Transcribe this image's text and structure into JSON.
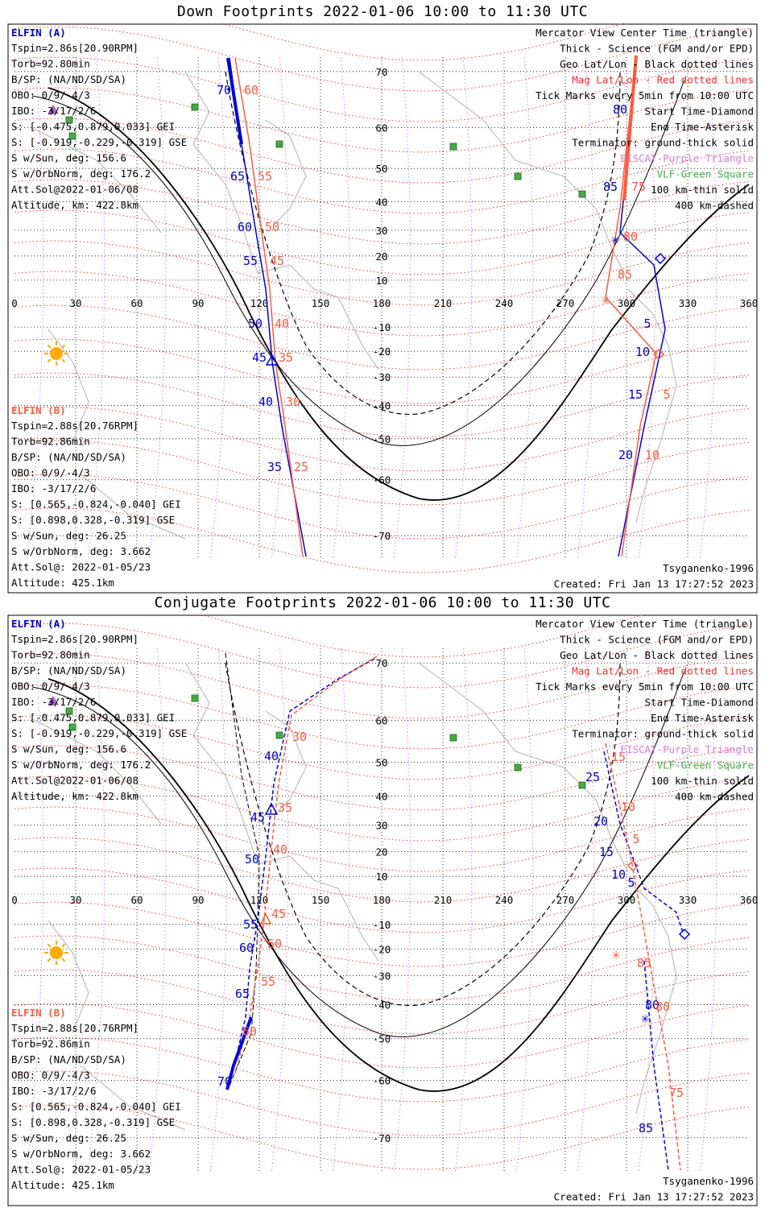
{
  "panels": [
    {
      "id": "down",
      "title": "Down Footprints 2022-01-06 10:00 to 11:30 UTC",
      "left_info": {
        "a_title": "ELFIN (A)",
        "a_lines": [
          "Tspin=2.86s[20.90RPM]",
          "Torb=92.80min",
          "B/SP: (NA/ND/SD/SA)",
          "OBO: 0/9/-4/3",
          "IBO: -3/17/2/6",
          "S: [-0.475,0.879,0.033] GEI",
          "S: [-0.919,-0.229,-0.319] GSE",
          "S w/Sun, deg: 156.6",
          "S w/OrbNorm, deg: 176.2",
          "Att.Sol@2022-01-06/08",
          "Altitude, km: 422.8km"
        ],
        "b_title": "ELFIN (B)",
        "b_lines": [
          "Tspin=2.88s[20.76RPM]",
          "Torb=92.86min",
          "B/SP: (NA/ND/SD/SA)",
          "OBO: 0/9/-4/3",
          "IBO: -3/17/2/6",
          "S: [0.565,-0.824,-0.040] GEI",
          "S: [0.898,0.328,-0.319] GSE",
          "S w/Sun, deg: 26.25",
          "S w/OrbNorm, deg: 3.662",
          "Att.Sol@: 2022-01-05/23",
          "Altitude: 425.1km"
        ]
      },
      "legend": [
        {
          "text": "Mercator View Center Time (triangle)",
          "color": "#000000"
        },
        {
          "text": "Thick - Science (FGM and/or EPD)",
          "color": "#000000"
        },
        {
          "text": "Geo Lat/Lon - Black dotted lines",
          "color": "#000000"
        },
        {
          "text": "Mag Lat/Lon - Red dotted lines",
          "color": "#ff2a2a"
        },
        {
          "text": "Tick Marks every 5min from 10:00 UTC",
          "color": "#000000"
        },
        {
          "text": "Start Time-Diamond",
          "color": "#000000"
        },
        {
          "text": "End Time-Asterisk",
          "color": "#000000"
        },
        {
          "text": "Terminator: ground-thick solid",
          "color": "#000000"
        },
        {
          "text": "EISCAT-Purple Triangle",
          "color": "#dd77dd"
        },
        {
          "text": "VLF-Green Square",
          "color": "#44aa44"
        },
        {
          "text": "100 km-thin solid",
          "color": "#000000"
        },
        {
          "text": "400 km-dashed",
          "color": "#000000"
        }
      ],
      "footer_left": "",
      "footer_right_model": "Tsyganenko-1996",
      "footer_right_created": "Created: Fri Jan 13 17:27:52 2023",
      "lat_labels": [
        "70",
        "60",
        "50",
        "40",
        "30",
        "20",
        "10",
        "-10",
        "-20",
        "-30",
        "-40",
        "-50",
        "-60",
        "-70"
      ],
      "lon_labels": [
        "0",
        "30",
        "60",
        "90",
        "120",
        "150",
        "180",
        "210",
        "240",
        "270",
        "300",
        "330",
        "360"
      ],
      "track_labels_blue": [
        "70",
        "65",
        "60",
        "55",
        "50",
        "45",
        "40",
        "35",
        "80",
        "85",
        "5",
        "10",
        "15",
        "20"
      ],
      "track_labels_red": [
        "60",
        "55",
        "50",
        "45",
        "40",
        "35",
        "30",
        "25",
        "75",
        "80",
        "85",
        "5",
        "10"
      ]
    },
    {
      "id": "conjugate",
      "title": "Conjugate Footprints 2022-01-06 10:00 to 11:30 UTC",
      "left_info": {
        "a_title": "ELFIN (A)",
        "a_lines": [
          "Tspin=2.86s[20.90RPM]",
          "Torb=92.80min",
          "B/SP: (NA/ND/SD/SA)",
          "OBO: 0/9/-4/3",
          "IBO: -3/17/2/6",
          "S: [-0.475,0.879,0.033] GEI",
          "S: [-0.919,-0.229,-0.319] GSE",
          "S w/Sun, deg: 156.6",
          "S w/OrbNorm, deg: 176.2",
          "Att.Sol@2022-01-06/08",
          "Altitude, km: 422.8km"
        ],
        "b_title": "ELFIN (B)",
        "b_lines": [
          "Tspin=2.88s[20.76RPM]",
          "Torb=92.86min",
          "B/SP: (NA/ND/SD/SA)",
          "OBO: 0/9/-4/3",
          "IBO: -3/17/2/6",
          "S: [0.565,-0.824,-0.040] GEI",
          "S: [0.898,0.328,-0.319] GSE",
          "S w/Sun, deg: 26.25",
          "S w/OrbNorm, deg: 3.662",
          "Att.Sol@: 2022-01-05/23",
          "Altitude: 425.1km"
        ]
      },
      "legend": [
        {
          "text": "Mercator View Center Time (triangle)",
          "color": "#000000"
        },
        {
          "text": "Thick - Science (FGM and/or EPD)",
          "color": "#000000"
        },
        {
          "text": "Geo Lat/Lon - Black dotted lines",
          "color": "#000000"
        },
        {
          "text": "Mag Lat/Lon - Red dotted lines",
          "color": "#ff2a2a"
        },
        {
          "text": "Tick Marks every 5min from 10:00 UTC",
          "color": "#000000"
        },
        {
          "text": "Start Time-Diamond",
          "color": "#000000"
        },
        {
          "text": "End Time-Asterisk",
          "color": "#000000"
        },
        {
          "text": "Terminator: ground-thick solid",
          "color": "#000000"
        },
        {
          "text": "EISCAT-Purple Triangle",
          "color": "#dd77dd"
        },
        {
          "text": "VLF-Green Square",
          "color": "#44aa44"
        },
        {
          "text": "100 km-thin solid",
          "color": "#000000"
        },
        {
          "text": "400 km-dashed",
          "color": "#000000"
        }
      ],
      "footer_right_model": "Tsyganenko-1996",
      "footer_right_created": "Created: Fri Jan 13 17:27:52 2023",
      "lat_labels": [
        "70",
        "60",
        "50",
        "40",
        "30",
        "20",
        "10",
        "-10",
        "-20",
        "-30",
        "-40",
        "-50",
        "-60",
        "-70"
      ],
      "lon_labels": [
        "0",
        "30",
        "60",
        "90",
        "120",
        "150",
        "180",
        "210",
        "240",
        "270",
        "300",
        "330",
        "360"
      ],
      "track_labels_blue": [
        "40",
        "45",
        "50",
        "55",
        "60",
        "65",
        "70",
        "25",
        "20",
        "15",
        "10",
        "5",
        "80",
        "85"
      ],
      "track_labels_red": [
        "30",
        "35",
        "40",
        "45",
        "50",
        "55",
        "60",
        "15",
        "10",
        "5",
        "85",
        "80",
        "75"
      ]
    }
  ],
  "colors": {
    "blue_track": "#0000dd",
    "red_track": "#ff5a3c",
    "mag_grid": "#ff2a2a",
    "geo_grid": "#000000",
    "eiscat": "#dd77dd",
    "vlf": "#44aa44",
    "sun": "#ffaa00",
    "land": "#b0b0b0"
  },
  "icons": [
    "sun-icon",
    "eiscat-triangle-icon",
    "vlf-square-icon",
    "start-diamond-icon",
    "end-asterisk-icon",
    "center-triangle-icon"
  ]
}
